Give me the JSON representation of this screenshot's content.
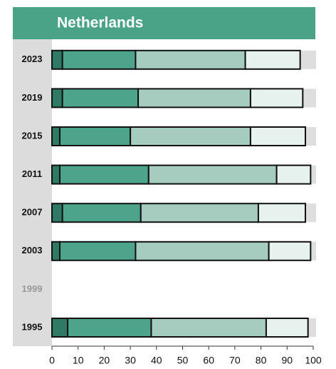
{
  "chart_data": {
    "type": "stacked-bar",
    "orientation": "horizontal",
    "title": "Netherlands",
    "categories": [
      "2023",
      "2019",
      "2015",
      "2011",
      "2007",
      "2003",
      "1999",
      "1995"
    ],
    "series": [
      {
        "color": "#2f7a64",
        "values": [
          4,
          4,
          3,
          3,
          4,
          3,
          null,
          6
        ]
      },
      {
        "color": "#4da48a",
        "values": [
          28,
          29,
          27,
          34,
          30,
          29,
          null,
          32
        ]
      },
      {
        "color": "#a5ccbf",
        "values": [
          42,
          43,
          46,
          49,
          45,
          51,
          null,
          44
        ]
      },
      {
        "color": "#e7f2ee",
        "values": [
          21,
          20,
          21,
          13,
          18,
          16,
          null,
          16
        ]
      }
    ],
    "xlim": [
      0,
      100
    ],
    "xticks": [
      0,
      10,
      20,
      30,
      40,
      50,
      60,
      70,
      80,
      90,
      100
    ]
  }
}
